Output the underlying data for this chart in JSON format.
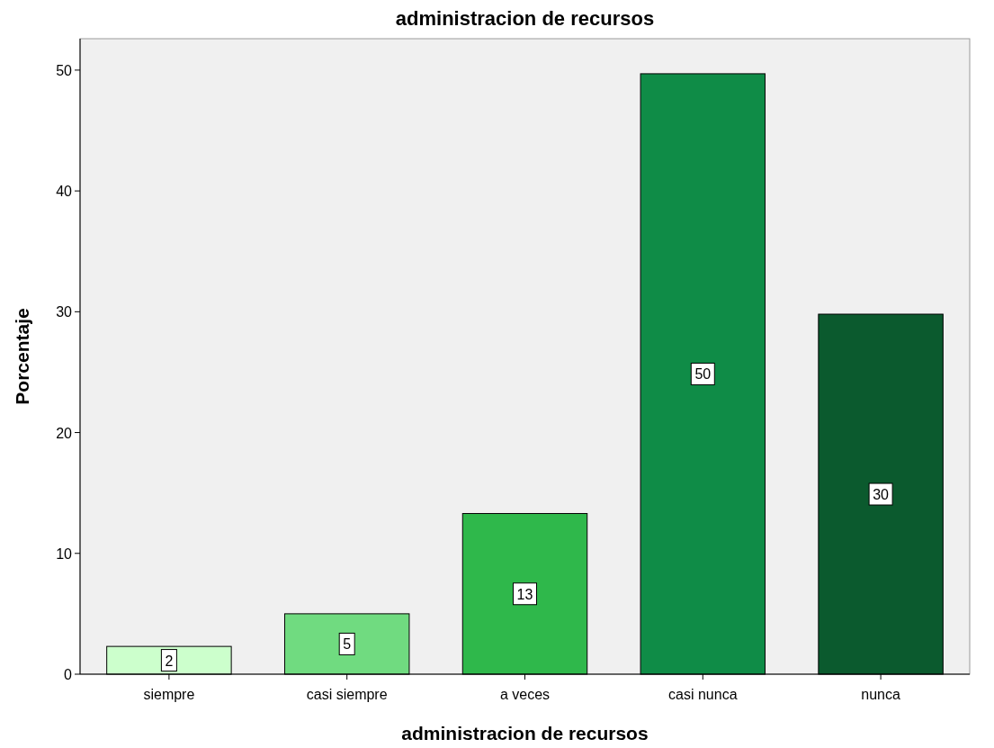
{
  "chart_data": {
    "type": "bar",
    "title": "administracion de recursos",
    "xlabel": "administracion de recursos",
    "ylabel": "Porcentaje",
    "categories": [
      "siempre",
      "casi siempre",
      "a veces",
      "casi nunca",
      "nunca"
    ],
    "values": [
      2.3,
      5,
      13.3,
      49.7,
      29.8
    ],
    "value_labels": [
      "2",
      "5",
      "13",
      "50",
      "30"
    ],
    "colors": [
      "#ccffcc",
      "#70db80",
      "#2fb84b",
      "#0f8c47",
      "#0b5a2e"
    ],
    "ylim": [
      0,
      52.6
    ],
    "yticks": [
      0,
      10,
      20,
      30,
      40,
      50
    ],
    "grid": false
  }
}
